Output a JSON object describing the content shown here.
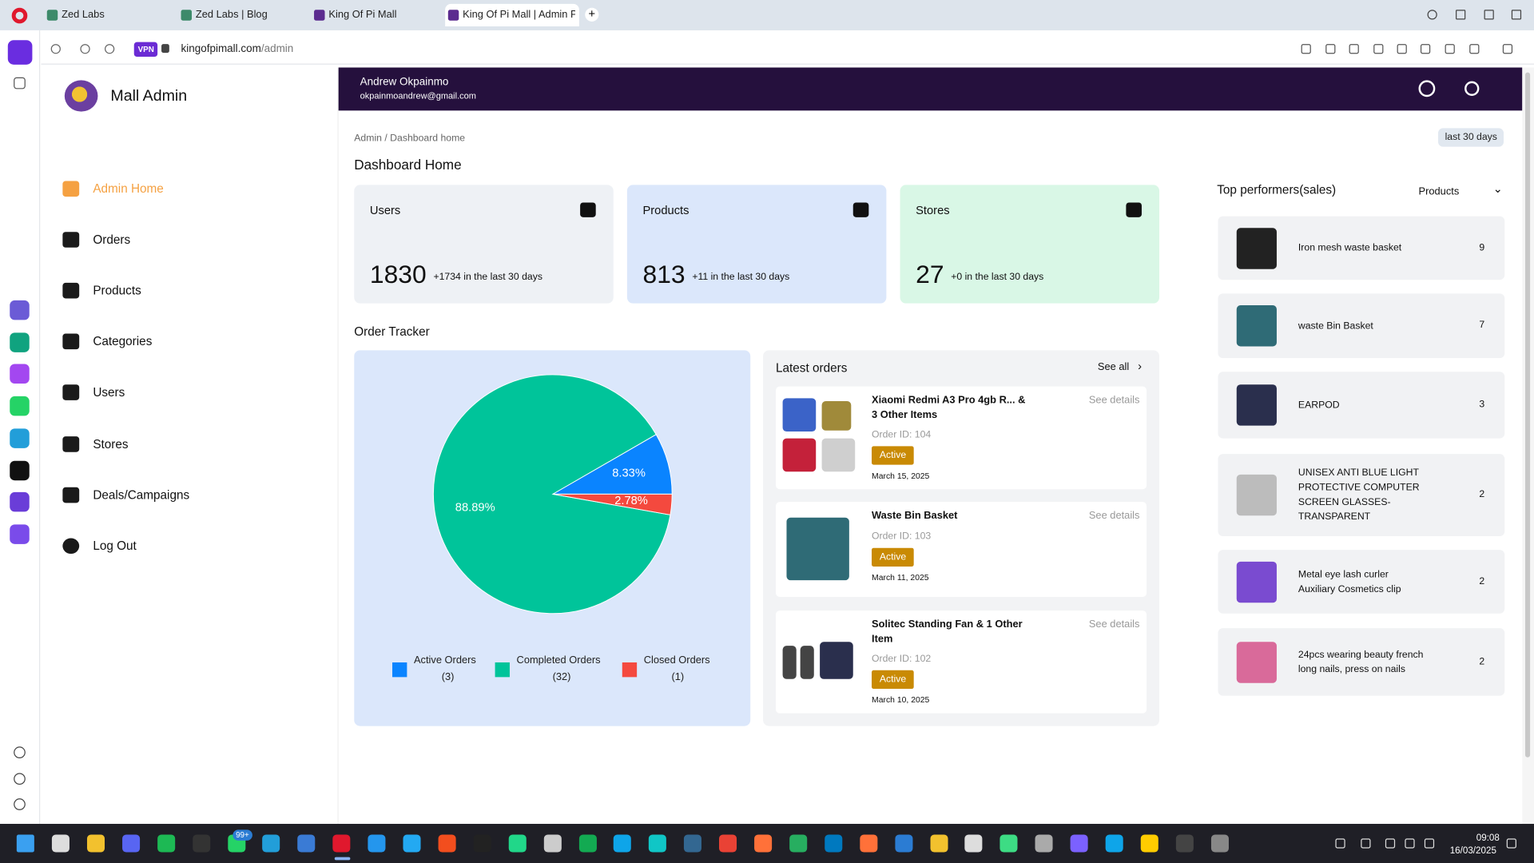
{
  "browser": {
    "tabs": [
      "Zed Labs",
      "Zed Labs | Blog",
      "King Of Pi Mall",
      "King Of Pi Mall | Admin Pa"
    ],
    "vpn": "VPN",
    "url_host": "kingofpimall.com",
    "url_path": "/admin"
  },
  "sidebar": {
    "brand": "Mall Admin",
    "items": [
      "Admin Home",
      "Orders",
      "Products",
      "Categories",
      "Users",
      "Stores",
      "Deals/Campaigns",
      "Log Out"
    ]
  },
  "header": {
    "name": "Andrew Okpainmo",
    "email": "okpainmoandrew@gmail.com"
  },
  "breadcrumb": "Admin / Dashboard home",
  "range": "last 30 days",
  "page_title": "Dashboard Home",
  "stats": [
    {
      "label": "Users",
      "value": 1830,
      "delta": "+1734 in the last 30 days"
    },
    {
      "label": "Products",
      "value": 813,
      "delta": "+11 in the last 30 days"
    },
    {
      "label": "Stores",
      "value": 27,
      "delta": "+0 in the last 30 days"
    }
  ],
  "order_tracker": {
    "title": "Order Tracker",
    "chart": {
      "type": "pie",
      "labels": [
        "Active Orders",
        "Completed Orders",
        "Closed Orders"
      ],
      "values": [
        8.33,
        88.89,
        2.78
      ],
      "value_labels": [
        "8.33%",
        "88.89%",
        "2.78%"
      ],
      "counts": [
        "(3)",
        "(32)",
        "(1)"
      ],
      "colors": [
        "#0a84ff",
        "#00c49a",
        "#f4493e"
      ]
    }
  },
  "latest_orders": {
    "title": "Latest orders",
    "see_all": "See all",
    "orders": [
      {
        "name": "Xiaomi Redmi A3 Pro 4gb R... & 3 Other Items",
        "id": "Order ID: 104",
        "status": "Active",
        "date": "March 15, 2025",
        "action": "See details"
      },
      {
        "name": "Waste Bin Basket",
        "id": "Order ID: 103",
        "status": "Active",
        "date": "March 11, 2025",
        "action": "See details"
      },
      {
        "name": "Solitec Standing Fan & 1 Other Item",
        "id": "Order ID: 102",
        "status": "Active",
        "date": "March 10, 2025",
        "action": "See details"
      }
    ]
  },
  "top_performers": {
    "title": "Top performers(sales)",
    "filter": "Products",
    "items": [
      {
        "name": "Iron mesh waste basket",
        "count": 9
      },
      {
        "name": "waste Bin Basket",
        "count": 7
      },
      {
        "name": "EARPOD",
        "count": 3
      },
      {
        "name": "UNISEX ANTI BLUE LIGHT PROTECTIVE COMPUTER SCREEN GLASSES-TRANSPARENT",
        "count": 2
      },
      {
        "name": "Metal eye lash curler Auxiliary Cosmetics clip",
        "count": 2
      },
      {
        "name": "24pcs wearing beauty french long nails, press on nails",
        "count": 2
      }
    ]
  },
  "taskbar": {
    "badge": "99+",
    "time": "09:08",
    "date": "16/03/2025"
  }
}
